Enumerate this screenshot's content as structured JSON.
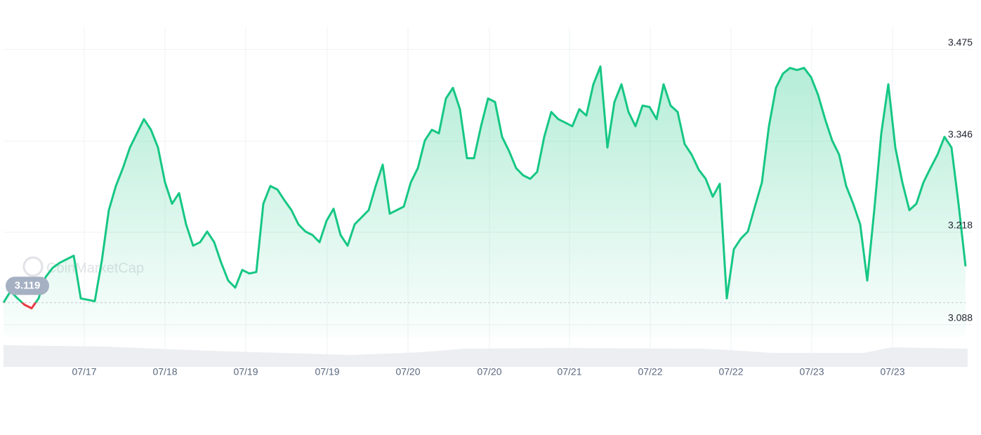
{
  "chart_data": {
    "type": "line",
    "watermark": "CoinMarketCap",
    "baseline": 3.119,
    "series": [
      {
        "color": "#16c784",
        "below_color": "#ea3943",
        "values": [
          3.119,
          3.135,
          3.125,
          3.116,
          3.111,
          3.125,
          3.155,
          3.168,
          3.175,
          3.18,
          3.185,
          3.125,
          3.123,
          3.121,
          3.178,
          3.249,
          3.283,
          3.308,
          3.337,
          3.357,
          3.377,
          3.362,
          3.337,
          3.288,
          3.258,
          3.273,
          3.229,
          3.199,
          3.204,
          3.219,
          3.204,
          3.175,
          3.15,
          3.14,
          3.165,
          3.16,
          3.162,
          3.258,
          3.283,
          3.278,
          3.263,
          3.249,
          3.229,
          3.219,
          3.214,
          3.204,
          3.234,
          3.251,
          3.214,
          3.199,
          3.229,
          3.239,
          3.249,
          3.283,
          3.313,
          3.244,
          3.249,
          3.254,
          3.288,
          3.308,
          3.347,
          3.362,
          3.357,
          3.406,
          3.421,
          3.391,
          3.322,
          3.322,
          3.367,
          3.406,
          3.401,
          3.352,
          3.332,
          3.308,
          3.298,
          3.293,
          3.303,
          3.352,
          3.387,
          3.377,
          3.372,
          3.367,
          3.391,
          3.382,
          3.426,
          3.451,
          3.337,
          3.401,
          3.426,
          3.387,
          3.367,
          3.396,
          3.394,
          3.377,
          3.426,
          3.396,
          3.387,
          3.342,
          3.327,
          3.306,
          3.293,
          3.268,
          3.286,
          3.125,
          3.194,
          3.209,
          3.219,
          3.254,
          3.288,
          3.367,
          3.421,
          3.441,
          3.449,
          3.446,
          3.449,
          3.436,
          3.411,
          3.377,
          3.347,
          3.327,
          3.283,
          3.258,
          3.229,
          3.15,
          3.249,
          3.357,
          3.426,
          3.337,
          3.288,
          3.249,
          3.258,
          3.288,
          3.308,
          3.327,
          3.352,
          3.337,
          3.258,
          3.17
        ]
      }
    ],
    "xlim": [
      0,
      137
    ],
    "xticks": [
      {
        "value": 11.5,
        "label": "07/17"
      },
      {
        "value": 23,
        "label": "07/18"
      },
      {
        "value": 34.5,
        "label": "07/19"
      },
      {
        "value": 46.1,
        "label": "07/19"
      },
      {
        "value": 57.6,
        "label": "07/20"
      },
      {
        "value": 69.2,
        "label": "07/20"
      },
      {
        "value": 80.6,
        "label": "07/21"
      },
      {
        "value": 92.1,
        "label": "07/22"
      },
      {
        "value": 103.6,
        "label": "07/22"
      },
      {
        "value": 115.1,
        "label": "07/23"
      },
      {
        "value": 126.6,
        "label": "07/23"
      }
    ],
    "ylim": [
      3.071,
      3.506
    ],
    "yticks": [
      3.088,
      3.218,
      3.346,
      3.475
    ],
    "grid": true
  }
}
